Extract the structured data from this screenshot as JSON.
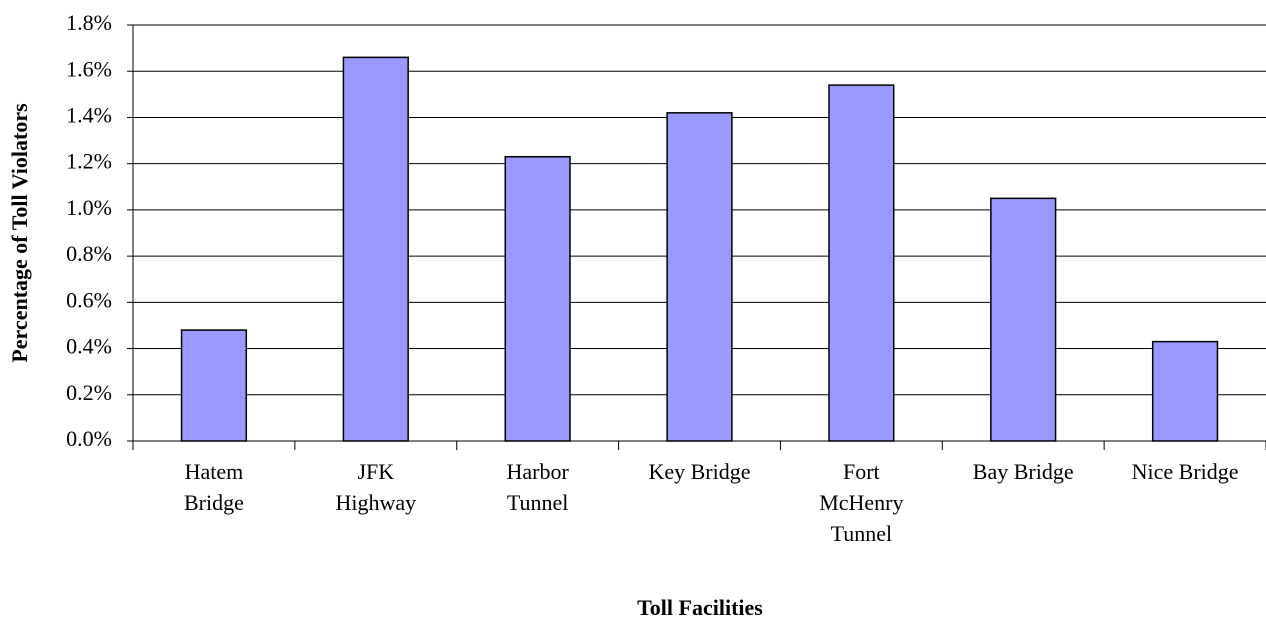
{
  "chart_data": {
    "type": "bar",
    "categories": [
      "Hatem Bridge",
      "JFK Highway",
      "Harbor Tunnel",
      "Key Bridge",
      "Fort McHenry Tunnel",
      "Bay Bridge",
      "Nice Bridge"
    ],
    "values": [
      0.48,
      1.66,
      1.23,
      1.42,
      1.54,
      1.05,
      0.43
    ],
    "color": "#9999ff",
    "xlabel": "Toll Facilities",
    "ylabel": "Percentage of Toll Violators",
    "ylim": [
      0,
      1.8
    ],
    "yticks": [
      {
        "value": 0,
        "label": "0.0%"
      },
      {
        "value": 0.2,
        "label": "0.2%"
      },
      {
        "value": 0.4,
        "label": "0.4%"
      },
      {
        "value": 0.6,
        "label": "0.6%"
      },
      {
        "value": 0.8,
        "label": "0.8%"
      },
      {
        "value": 1.0,
        "label": "1.0%"
      },
      {
        "value": 1.2,
        "label": "1.2%"
      },
      {
        "value": 1.4,
        "label": "1.4%"
      },
      {
        "value": 1.6,
        "label": "1.6%"
      },
      {
        "value": 1.8,
        "label": "1.8%"
      }
    ],
    "grid": true
  }
}
